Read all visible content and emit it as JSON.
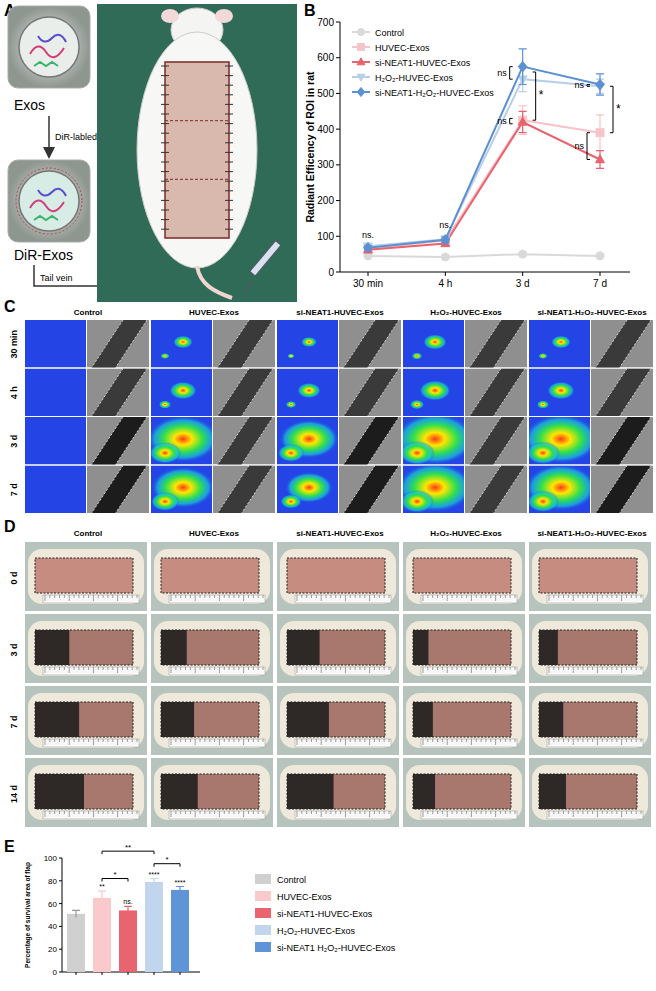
{
  "panels": {
    "A": {
      "label": "A",
      "texts": {
        "exos": "Exos",
        "labeling": "DiR-labled",
        "dir_exos": "DiR-Exos",
        "injection": "Tail vein"
      }
    },
    "B": {
      "label": "B"
    },
    "C": {
      "label": "C",
      "columns": [
        "Control",
        "HUVEC-Exos",
        "si-NEAT1-HUVEC-Exos",
        "H₂O₂-HUVEC-Exos",
        "si-NEAT1-H₂O₂-HUVEC-Exos"
      ],
      "rows": [
        "30 min",
        "4 h",
        "3 d",
        "7 d"
      ]
    },
    "D": {
      "label": "D",
      "columns": [
        "Control",
        "HUVEC-Exos",
        "si-NEAT1-HUVEC-Exos",
        "H₂O₂-HUVEC-Exos",
        "si-NEAT1-H₂O₂-HUVEC-Exos"
      ],
      "rows": [
        "0 d",
        "3 d",
        "7 d",
        "14 d"
      ]
    },
    "E": {
      "label": "E"
    }
  },
  "chart_data": [
    {
      "type": "line",
      "y_label": "Radiant Efficency of ROI in rat",
      "categories": [
        "30 min",
        "4 h",
        "3 d",
        "7 d"
      ],
      "ylim": [
        0,
        700
      ],
      "yticks": [
        0,
        100,
        200,
        300,
        400,
        500,
        600,
        700
      ],
      "legend": "upper left",
      "series": [
        {
          "name": "Control",
          "color": "#d9d9d9",
          "marker": "circle",
          "values": [
            45,
            42,
            50,
            45
          ],
          "errors": [
            3,
            3,
            4,
            3
          ]
        },
        {
          "name": "HUVEC-Exos",
          "color": "#f7c5c9",
          "marker": "square",
          "values": [
            65,
            88,
            425,
            390
          ],
          "errors": [
            8,
            8,
            40,
            50
          ]
        },
        {
          "name": "si-NEAT1-HUVEC-Exos",
          "color": "#e8636d",
          "marker": "triangle",
          "values": [
            62,
            80,
            420,
            315
          ],
          "errors": [
            6,
            6,
            30,
            25
          ]
        },
        {
          "name": "H₂O₂-HUVEC-Exos",
          "color": "#b9cfe9",
          "marker": "triangle-down",
          "values": [
            72,
            92,
            540,
            520
          ],
          "errors": [
            8,
            8,
            35,
            20
          ]
        },
        {
          "name": "si-NEAT1-H₂O₂-HUVEC-Exos",
          "color": "#5b90d2",
          "marker": "diamond",
          "values": [
            68,
            90,
            575,
            525
          ],
          "errors": [
            6,
            8,
            50,
            30
          ]
        }
      ],
      "annotations": [
        {
          "text": "ns.",
          "x": 0,
          "y": 95
        },
        {
          "text": "ns.",
          "x": 1,
          "y": 122
        },
        {
          "text": "ns",
          "x": 2,
          "y1": 415,
          "y2": 430
        },
        {
          "text": "ns",
          "x": 2,
          "y1": 540,
          "y2": 575
        },
        {
          "text": "*",
          "x": 2,
          "y1": 425,
          "y2": 560
        },
        {
          "text": "ns",
          "x": 3,
          "y1": 520,
          "y2": 525
        },
        {
          "text": "ns",
          "x": 3,
          "y1": 315,
          "y2": 390
        },
        {
          "text": "*",
          "x": 3,
          "y1": 390,
          "y2": 520
        }
      ]
    },
    {
      "type": "bar",
      "y_label": "Percentage of survival area of flap",
      "categories": [
        null
      ],
      "ylim": [
        0,
        100
      ],
      "yticks": [
        0,
        20,
        40,
        60,
        80,
        100
      ],
      "legend": "right",
      "series": [
        {
          "name": "Control",
          "color": "#d0d0d0",
          "values": [
            51
          ],
          "errors": [
            3
          ]
        },
        {
          "name": "HUVEC-Exos",
          "color": "#f9c9cc",
          "values": [
            65
          ],
          "errors": [
            6
          ]
        },
        {
          "name": "si-NEAT1-HUVEC-Exos",
          "color": "#e8646e",
          "values": [
            54
          ],
          "errors": [
            3.5
          ]
        },
        {
          "name": "H₂O₂-HUVEC-Exos",
          "color": "#c2d5ee",
          "values": [
            79
          ],
          "errors": [
            3
          ]
        },
        {
          "name": "si-NEAT1 H₂O₂-HUVEC-Exos",
          "color": "#5f94d6",
          "values": [
            72
          ],
          "errors": [
            3
          ]
        }
      ],
      "annotations": [
        {
          "text": "**",
          "series": 1
        },
        {
          "text": "ns.",
          "series": 2
        },
        {
          "text": "****",
          "series": 3
        },
        {
          "text": "****",
          "series": 4
        },
        {
          "text": "**",
          "from": 1,
          "to": 3,
          "y": 106
        },
        {
          "text": "*",
          "from": 1,
          "to": 2,
          "y": 82
        },
        {
          "text": "*",
          "from": 3,
          "to": 4,
          "y": 95
        }
      ]
    }
  ]
}
